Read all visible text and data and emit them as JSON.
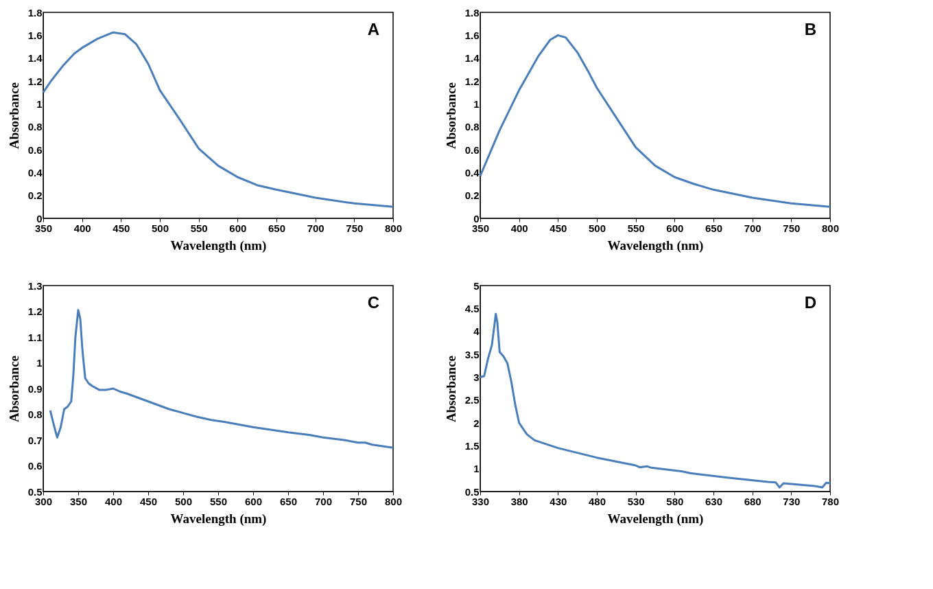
{
  "chart_data": [
    {
      "type": "line",
      "xlabel": "Wavelength  (nm)",
      "ylabel": "Absorbance",
      "annotations": [
        "A"
      ],
      "xlim": [
        350,
        800
      ],
      "xticks": [
        350,
        400,
        450,
        500,
        550,
        600,
        650,
        700,
        750,
        800
      ],
      "ylim": [
        0,
        1.8
      ],
      "yticks": [
        0,
        0.2,
        0.4,
        0.6,
        0.8,
        1,
        1.2,
        1.4,
        1.6,
        1.8
      ],
      "grid": false,
      "line_style": "solid",
      "series": [
        {
          "color": "#4a7ebb",
          "x": [
            350,
            360,
            375,
            390,
            400,
            420,
            440,
            455,
            470,
            485,
            500,
            525,
            550,
            575,
            600,
            625,
            650,
            700,
            750,
            800
          ],
          "values": [
            1.1,
            1.2,
            1.33,
            1.44,
            1.49,
            1.57,
            1.625,
            1.61,
            1.52,
            1.35,
            1.12,
            0.87,
            0.61,
            0.46,
            0.36,
            0.29,
            0.25,
            0.18,
            0.13,
            0.1
          ]
        }
      ]
    },
    {
      "type": "line",
      "xlabel": "Wavelength  (nm)",
      "ylabel": "Absorbance",
      "annotations": [
        "B"
      ],
      "xlim": [
        350,
        800
      ],
      "xticks": [
        350,
        400,
        450,
        500,
        550,
        600,
        650,
        700,
        750,
        800
      ],
      "ylim": [
        0,
        1.8
      ],
      "yticks": [
        0,
        0.2,
        0.4,
        0.6,
        0.8,
        1,
        1.2,
        1.4,
        1.6,
        1.8
      ],
      "grid": false,
      "line_style": "solid",
      "series": [
        {
          "color": "#4a7ebb",
          "x": [
            350,
            375,
            400,
            425,
            440,
            450,
            460,
            475,
            490,
            500,
            525,
            550,
            575,
            600,
            625,
            650,
            700,
            750,
            800
          ],
          "values": [
            0.37,
            0.77,
            1.12,
            1.42,
            1.56,
            1.6,
            1.58,
            1.45,
            1.27,
            1.14,
            0.88,
            0.62,
            0.46,
            0.36,
            0.3,
            0.25,
            0.18,
            0.13,
            0.1
          ]
        }
      ]
    },
    {
      "type": "line",
      "xlabel": "Wavelength  (nm)",
      "ylabel": "Absorbance",
      "annotations": [
        "C"
      ],
      "xlim": [
        300,
        800
      ],
      "xticks": [
        300,
        350,
        400,
        450,
        500,
        550,
        600,
        650,
        700,
        750,
        800
      ],
      "ylim": [
        0.5,
        1.3
      ],
      "yticks": [
        0.5,
        0.6,
        0.7,
        0.8,
        0.9,
        1,
        1.1,
        1.2,
        1.3
      ],
      "grid": false,
      "line_style": "solid",
      "series": [
        {
          "color": "#4a7ebb",
          "x": [
            310,
            315,
            320,
            325,
            330,
            335,
            340,
            343,
            346,
            350,
            353,
            356,
            360,
            365,
            370,
            380,
            390,
            400,
            410,
            420,
            440,
            460,
            480,
            500,
            520,
            540,
            560,
            580,
            600,
            650,
            680,
            700,
            730,
            750,
            760,
            770,
            800
          ],
          "values": [
            0.815,
            0.76,
            0.71,
            0.75,
            0.82,
            0.83,
            0.85,
            0.95,
            1.1,
            1.205,
            1.17,
            1.05,
            0.94,
            0.92,
            0.91,
            0.895,
            0.895,
            0.9,
            0.888,
            0.88,
            0.86,
            0.84,
            0.82,
            0.805,
            0.79,
            0.778,
            0.77,
            0.76,
            0.75,
            0.73,
            0.72,
            0.71,
            0.7,
            0.69,
            0.69,
            0.682,
            0.67
          ]
        }
      ]
    },
    {
      "type": "line",
      "xlabel": "Wavelength  (nm)",
      "ylabel": "Absorbance",
      "annotations": [
        "D"
      ],
      "xlim": [
        330,
        780
      ],
      "xticks": [
        330,
        380,
        430,
        480,
        530,
        580,
        630,
        680,
        730,
        780
      ],
      "ylim": [
        0.5,
        5
      ],
      "yticks": [
        0.5,
        1,
        1.5,
        2,
        2.5,
        3,
        3.5,
        4,
        4.5,
        5
      ],
      "grid": false,
      "line_style": "solid",
      "series": [
        {
          "color": "#4a7ebb",
          "x": [
            330,
            335,
            340,
            345,
            348,
            350,
            352,
            355,
            360,
            365,
            370,
            375,
            380,
            390,
            400,
            430,
            480,
            530,
            535,
            545,
            550,
            590,
            600,
            650,
            700,
            710,
            715,
            720,
            760,
            770,
            775,
            780
          ],
          "values": [
            3.0,
            3.02,
            3.4,
            3.7,
            4.1,
            4.38,
            4.2,
            3.55,
            3.45,
            3.3,
            2.9,
            2.4,
            2.0,
            1.75,
            1.62,
            1.45,
            1.24,
            1.07,
            1.03,
            1.05,
            1.02,
            0.94,
            0.9,
            0.8,
            0.71,
            0.7,
            0.59,
            0.68,
            0.62,
            0.59,
            0.69,
            0.68
          ]
        }
      ]
    }
  ]
}
